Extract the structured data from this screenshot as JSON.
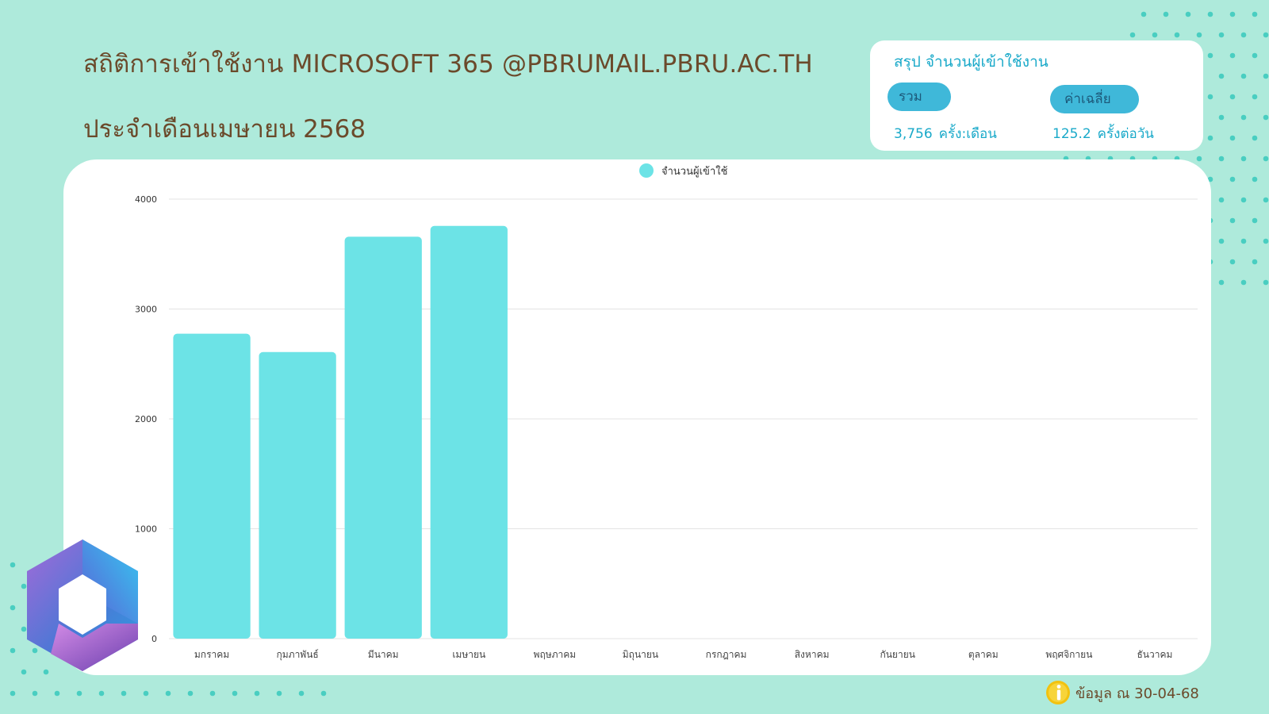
{
  "header": {
    "title_line1": "สถิติการเข้าใช้งาน MICROSOFT 365 @PBRUMAIL.PBRU.AC.TH",
    "title_line2": "ประจำเดือนเมษายน 2568"
  },
  "summary": {
    "title": "สรุป จำนวนผู้เข้าใช้งาน",
    "total_label": "รวม",
    "average_label": "ค่าเฉลี่ย",
    "total_value": "3,756",
    "total_unit": "ครั้ง:เดือน",
    "average_value": "125.2",
    "average_unit": "ครั้งต่อวัน"
  },
  "footer": {
    "note": "ข้อมูล ณ 30-04-68",
    "icon": "info-icon"
  },
  "colors": {
    "background": "#aeeadb",
    "bar": "#6ce3e6",
    "title": "#6b4a2b",
    "accent": "#19a9c9",
    "pill": "#3fb8d9"
  },
  "logo": {
    "icon": "microsoft-365-logo-icon"
  },
  "chart_data": {
    "type": "bar",
    "categories": [
      "มกราคม",
      "กุมภาพันธ์",
      "มีนาคม",
      "เมษายน",
      "พฤษภาคม",
      "มิถุนายน",
      "กรกฎาคม",
      "สิงหาคม",
      "กันยายน",
      "ตุลาคม",
      "พฤศจิกายน",
      "ธันวาคม"
    ],
    "series": [
      {
        "name": "จำนวนผู้เข้าใช้",
        "values": [
          2775,
          2608,
          3658,
          3756,
          null,
          null,
          null,
          null,
          null,
          null,
          null,
          null
        ]
      }
    ],
    "ylim": [
      0,
      4000
    ],
    "yticks": [
      0,
      1000,
      2000,
      3000,
      4000
    ],
    "grid": true,
    "legend_position": "top-center"
  }
}
